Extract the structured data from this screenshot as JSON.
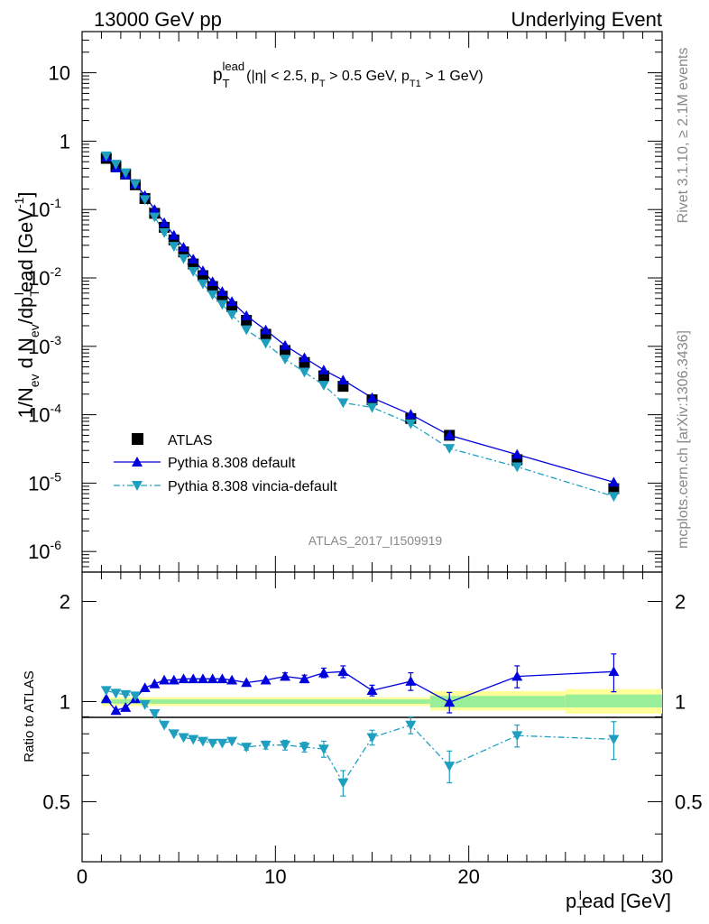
{
  "header": {
    "left": "13000 GeV pp",
    "right": "Underlying Event"
  },
  "side_text": {
    "rivet": "Rivet 3.1.10, ≥ 2.1M events",
    "mcplots": "mcplots.cern.ch [arXiv:1306.3436]"
  },
  "analysis_tag": "ATLAS_2017_I1509919",
  "colors": {
    "atlas": "#000000",
    "default": "#0000dd",
    "vincia": "#1f9fbf",
    "band_inner": "#99ee99",
    "band_outer": "#ffff99"
  },
  "chart_data": [
    {
      "type": "scatter",
      "title": "p_T^lead (|η| < 2.5, p_T > 0.5 GeV, p_T1 > 1 GeV)",
      "title_parts": {
        "p": "p",
        "sub_t": "T",
        "sup_lead": "lead",
        "open": "(|η| < 2.5, p",
        "mid": " > 0.5 GeV, p",
        "sub_t1": "T1",
        "close": " > 1 GeV)"
      },
      "ylabel": "1/N_ev d N_ev/dp_T^l ead [GeV^-1]",
      "ylabel_parts": {
        "a": "1/N",
        "ev1": "ev",
        "b": " d N",
        "ev2": "ev",
        "c": "/dp",
        "T": "T",
        "l": "l",
        "d": "ead [GeV",
        "m1": "-1",
        "e": "]"
      },
      "yscale": "log",
      "ylim": [
        5e-07,
        40
      ],
      "xlim": [
        0,
        30
      ],
      "y_ticks": [
        1e-06,
        1e-05,
        0.0001,
        0.001,
        0.01,
        0.1,
        1,
        10
      ],
      "y_tick_labels": [
        {
          "base": "10",
          "exp": "-6"
        },
        {
          "base": "10",
          "exp": "-5"
        },
        {
          "base": "10",
          "exp": "-4"
        },
        {
          "base": "10",
          "exp": "-3"
        },
        {
          "base": "10",
          "exp": "-2"
        },
        {
          "base": "10",
          "exp": "-1"
        },
        {
          "base": "1",
          "exp": ""
        },
        {
          "base": "10",
          "exp": ""
        }
      ],
      "legend_position": "bottom-left",
      "x": [
        1.25,
        1.75,
        2.25,
        2.75,
        3.25,
        3.75,
        4.25,
        4.75,
        5.25,
        5.75,
        6.25,
        6.75,
        7.25,
        7.75,
        8.5,
        9.5,
        10.5,
        11.5,
        12.5,
        13.5,
        15,
        17,
        19,
        22.5,
        27.5
      ],
      "series": [
        {
          "name": "ATLAS",
          "marker": "square",
          "values": [
            0.56,
            0.43,
            0.33,
            0.23,
            0.145,
            0.088,
            0.055,
            0.036,
            0.024,
            0.016,
            0.0108,
            0.0075,
            0.0054,
            0.0038,
            0.0024,
            0.0015,
            0.00087,
            0.00058,
            0.00037,
            0.00026,
            0.000165,
            8.8e-05,
            5e-05,
            2.2e-05,
            8.3e-06
          ]
        },
        {
          "name": "Pythia 8.308 default",
          "marker": "triangle-up",
          "line": "solid",
          "values": [
            0.585,
            0.405,
            0.32,
            0.235,
            0.16,
            0.1,
            0.064,
            0.042,
            0.028,
            0.0188,
            0.0127,
            0.0088,
            0.0063,
            0.0045,
            0.0028,
            0.00173,
            0.00103,
            0.00068,
            0.00045,
            0.00032,
            0.000177,
            0.000101,
            5e-05,
            2.62e-05,
            1.03e-05
          ]
        },
        {
          "name": "Pythia 8.308 vincia-default",
          "marker": "triangle-down",
          "line": "dash-dot",
          "values": [
            0.61,
            0.46,
            0.345,
            0.235,
            0.14,
            0.078,
            0.046,
            0.029,
            0.0192,
            0.0125,
            0.0082,
            0.0057,
            0.0041,
            0.0029,
            0.00175,
            0.00111,
            0.00065,
            0.00042,
            0.00027,
            0.00015,
            0.000128,
            7.4e-05,
            3.22e-05,
            1.73e-05,
            6.4e-06
          ]
        }
      ]
    },
    {
      "type": "scatter",
      "ylabel": "Ratio to ATLAS",
      "xlabel": "p_T^l ead [GeV]",
      "xlabel_parts": {
        "p": "p",
        "T": "T",
        "l": "l",
        "rest": "ead [GeV]"
      },
      "xlim": [
        0,
        30
      ],
      "ylim": [
        0.33,
        2.45
      ],
      "x_ticks": [
        0,
        10,
        20,
        30
      ],
      "x_tick_labels": [
        "0",
        "10",
        "20",
        "30"
      ],
      "y_ticks": [
        0.5,
        1,
        2
      ],
      "y_tick_labels": [
        "0.5",
        "1",
        "2"
      ],
      "reference_line": 1.0,
      "bands": [
        {
          "x": [
            1.0,
            18.0
          ],
          "inner": [
            0.985,
            1.015
          ],
          "outer": [
            0.97,
            1.03
          ]
        },
        {
          "x": [
            18.0,
            25.0
          ],
          "inner": [
            0.96,
            1.04
          ],
          "outer": [
            0.94,
            1.075
          ]
        },
        {
          "x": [
            25.0,
            30.0
          ],
          "inner": [
            0.96,
            1.05
          ],
          "outer": [
            0.92,
            1.09
          ]
        }
      ],
      "x": [
        1.25,
        1.75,
        2.25,
        2.75,
        3.25,
        3.75,
        4.25,
        4.75,
        5.25,
        5.75,
        6.25,
        6.75,
        7.25,
        7.75,
        8.5,
        9.5,
        10.5,
        11.5,
        12.5,
        13.5,
        15,
        17,
        19,
        22.5,
        27.5
      ],
      "series": [
        {
          "name": "Pythia 8.308 default",
          "values": [
            1.02,
            0.94,
            0.96,
            1.02,
            1.1,
            1.13,
            1.16,
            1.16,
            1.17,
            1.17,
            1.17,
            1.17,
            1.17,
            1.16,
            1.14,
            1.16,
            1.19,
            1.17,
            1.22,
            1.23,
            1.08,
            1.15,
            0.995,
            1.19,
            1.23
          ],
          "err": [
            0.01,
            0.01,
            0.01,
            0.01,
            0.01,
            0.01,
            0.01,
            0.01,
            0.01,
            0.01,
            0.01,
            0.01,
            0.01,
            0.01,
            0.015,
            0.02,
            0.03,
            0.03,
            0.04,
            0.05,
            0.04,
            0.07,
            0.07,
            0.09,
            0.16
          ]
        },
        {
          "name": "Pythia 8.308 vincia-default",
          "values": [
            1.08,
            1.06,
            1.05,
            1.04,
            0.98,
            0.92,
            0.85,
            0.8,
            0.78,
            0.77,
            0.76,
            0.75,
            0.75,
            0.76,
            0.73,
            0.74,
            0.74,
            0.73,
            0.72,
            0.57,
            0.78,
            0.85,
            0.64,
            0.79,
            0.77
          ],
          "err": [
            0.01,
            0.01,
            0.01,
            0.01,
            0.01,
            0.01,
            0.01,
            0.01,
            0.01,
            0.01,
            0.01,
            0.01,
            0.01,
            0.01,
            0.015,
            0.02,
            0.025,
            0.025,
            0.04,
            0.05,
            0.04,
            0.05,
            0.07,
            0.06,
            0.1
          ]
        }
      ]
    }
  ]
}
